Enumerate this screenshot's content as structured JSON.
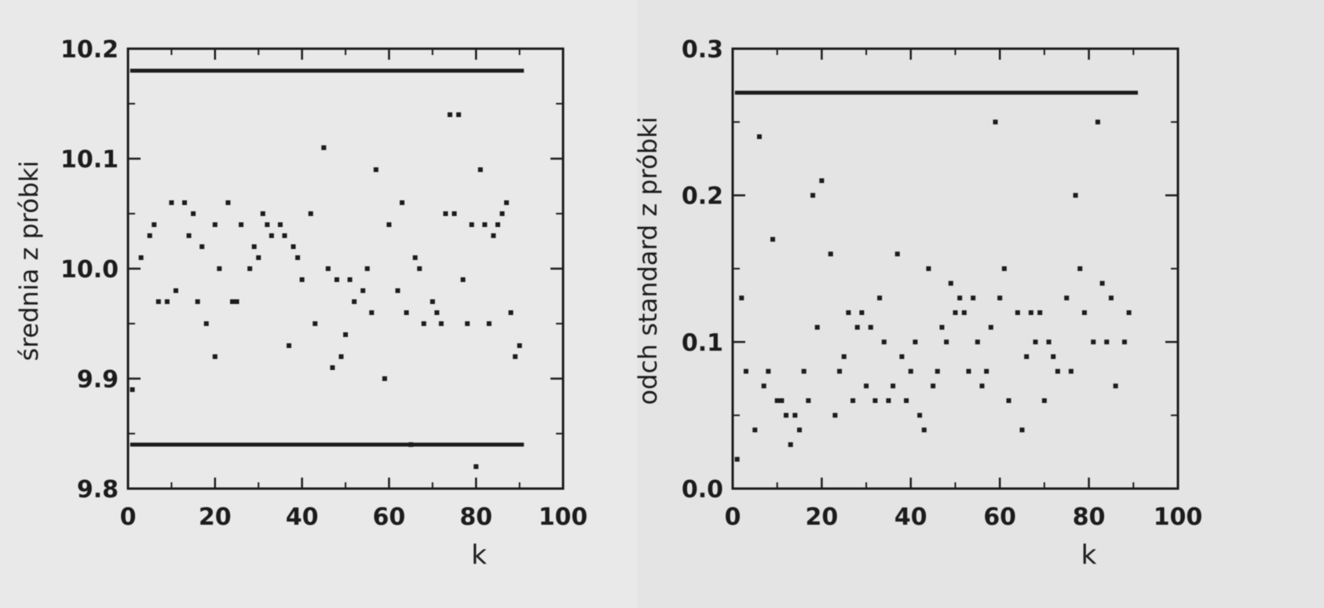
{
  "chart_data": [
    {
      "type": "scatter",
      "title": "",
      "xlabel": "k",
      "ylabel": "średnia z próbki",
      "xlim": [
        0,
        100
      ],
      "ylim": [
        9.8,
        10.2
      ],
      "x_ticks": [
        "0",
        "20",
        "40",
        "60",
        "80",
        "100"
      ],
      "y_ticks": [
        "9.8",
        "9.9",
        "10.0",
        "10.1",
        "10.2"
      ],
      "grid": false,
      "control_lines": [
        10.18,
        9.84
      ],
      "series": [
        {
          "points": [
            [
              1,
              9.89
            ],
            [
              3,
              10.01
            ],
            [
              5,
              10.03
            ],
            [
              6,
              10.04
            ],
            [
              7,
              9.97
            ],
            [
              9,
              9.97
            ],
            [
              10,
              10.06
            ],
            [
              11,
              9.98
            ],
            [
              13,
              10.06
            ],
            [
              14,
              10.03
            ],
            [
              15,
              10.05
            ],
            [
              16,
              9.97
            ],
            [
              17,
              10.02
            ],
            [
              18,
              9.95
            ],
            [
              20,
              9.92
            ],
            [
              20,
              10.04
            ],
            [
              21,
              10.0
            ],
            [
              23,
              10.06
            ],
            [
              24,
              9.97
            ],
            [
              25,
              9.97
            ],
            [
              26,
              10.04
            ],
            [
              28,
              10.0
            ],
            [
              29,
              10.02
            ],
            [
              30,
              10.01
            ],
            [
              31,
              10.05
            ],
            [
              32,
              10.04
            ],
            [
              33,
              10.03
            ],
            [
              35,
              10.04
            ],
            [
              36,
              10.03
            ],
            [
              37,
              9.93
            ],
            [
              38,
              10.02
            ],
            [
              39,
              10.01
            ],
            [
              40,
              9.99
            ],
            [
              42,
              10.05
            ],
            [
              43,
              9.95
            ],
            [
              45,
              10.11
            ],
            [
              46,
              10.0
            ],
            [
              47,
              9.91
            ],
            [
              48,
              9.99
            ],
            [
              49,
              9.92
            ],
            [
              50,
              9.94
            ],
            [
              51,
              9.99
            ],
            [
              52,
              9.97
            ],
            [
              54,
              9.98
            ],
            [
              55,
              10.0
            ],
            [
              56,
              9.96
            ],
            [
              57,
              10.09
            ],
            [
              59,
              9.9
            ],
            [
              60,
              10.04
            ],
            [
              62,
              9.98
            ],
            [
              63,
              10.06
            ],
            [
              64,
              9.96
            ],
            [
              65,
              9.84
            ],
            [
              66,
              10.01
            ],
            [
              67,
              10.0
            ],
            [
              68,
              9.95
            ],
            [
              70,
              9.97
            ],
            [
              71,
              9.96
            ],
            [
              72,
              9.95
            ],
            [
              73,
              10.05
            ],
            [
              74,
              10.14
            ],
            [
              75,
              10.05
            ],
            [
              76,
              10.14
            ],
            [
              77,
              9.99
            ],
            [
              78,
              9.95
            ],
            [
              79,
              10.04
            ],
            [
              80,
              9.82
            ],
            [
              81,
              10.09
            ],
            [
              82,
              10.04
            ],
            [
              83,
              9.95
            ],
            [
              84,
              10.03
            ],
            [
              85,
              10.04
            ],
            [
              86,
              10.05
            ],
            [
              87,
              10.06
            ],
            [
              88,
              9.96
            ],
            [
              89,
              9.92
            ],
            [
              90,
              9.93
            ]
          ]
        }
      ]
    },
    {
      "type": "scatter",
      "title": "",
      "xlabel": "k",
      "ylabel": "odch standard z próbki",
      "xlim": [
        0,
        100
      ],
      "ylim": [
        0.0,
        0.3
      ],
      "x_ticks": [
        "0",
        "20",
        "40",
        "60",
        "80",
        "100"
      ],
      "y_ticks": [
        "0.0",
        "0.1",
        "0.2",
        "0.3"
      ],
      "grid": false,
      "control_lines": [
        0.27
      ],
      "series": [
        {
          "points": [
            [
              1,
              0.02
            ],
            [
              2,
              0.13
            ],
            [
              3,
              0.08
            ],
            [
              5,
              0.04
            ],
            [
              6,
              0.24
            ],
            [
              7,
              0.07
            ],
            [
              8,
              0.08
            ],
            [
              9,
              0.17
            ],
            [
              10,
              0.06
            ],
            [
              11,
              0.06
            ],
            [
              12,
              0.05
            ],
            [
              13,
              0.03
            ],
            [
              14,
              0.05
            ],
            [
              15,
              0.04
            ],
            [
              16,
              0.08
            ],
            [
              17,
              0.06
            ],
            [
              18,
              0.2
            ],
            [
              19,
              0.11
            ],
            [
              20,
              0.21
            ],
            [
              22,
              0.16
            ],
            [
              23,
              0.05
            ],
            [
              24,
              0.08
            ],
            [
              25,
              0.09
            ],
            [
              26,
              0.12
            ],
            [
              27,
              0.06
            ],
            [
              28,
              0.11
            ],
            [
              29,
              0.12
            ],
            [
              30,
              0.07
            ],
            [
              31,
              0.11
            ],
            [
              32,
              0.06
            ],
            [
              33,
              0.13
            ],
            [
              34,
              0.1
            ],
            [
              35,
              0.06
            ],
            [
              36,
              0.07
            ],
            [
              37,
              0.16
            ],
            [
              38,
              0.09
            ],
            [
              39,
              0.06
            ],
            [
              40,
              0.08
            ],
            [
              41,
              0.1
            ],
            [
              42,
              0.05
            ],
            [
              43,
              0.04
            ],
            [
              44,
              0.15
            ],
            [
              45,
              0.07
            ],
            [
              46,
              0.08
            ],
            [
              47,
              0.11
            ],
            [
              48,
              0.1
            ],
            [
              49,
              0.14
            ],
            [
              50,
              0.12
            ],
            [
              51,
              0.13
            ],
            [
              52,
              0.12
            ],
            [
              53,
              0.08
            ],
            [
              54,
              0.13
            ],
            [
              55,
              0.1
            ],
            [
              56,
              0.07
            ],
            [
              57,
              0.08
            ],
            [
              58,
              0.11
            ],
            [
              59,
              0.25
            ],
            [
              60,
              0.13
            ],
            [
              61,
              0.15
            ],
            [
              62,
              0.06
            ],
            [
              64,
              0.12
            ],
            [
              65,
              0.04
            ],
            [
              66,
              0.09
            ],
            [
              67,
              0.12
            ],
            [
              68,
              0.1
            ],
            [
              69,
              0.12
            ],
            [
              70,
              0.06
            ],
            [
              71,
              0.1
            ],
            [
              72,
              0.09
            ],
            [
              73,
              0.08
            ],
            [
              75,
              0.13
            ],
            [
              76,
              0.08
            ],
            [
              77,
              0.2
            ],
            [
              78,
              0.15
            ],
            [
              79,
              0.12
            ],
            [
              81,
              0.1
            ],
            [
              82,
              0.25
            ],
            [
              83,
              0.14
            ],
            [
              84,
              0.1
            ],
            [
              85,
              0.13
            ],
            [
              86,
              0.07
            ],
            [
              88,
              0.1
            ],
            [
              89,
              0.12
            ]
          ]
        }
      ]
    }
  ]
}
